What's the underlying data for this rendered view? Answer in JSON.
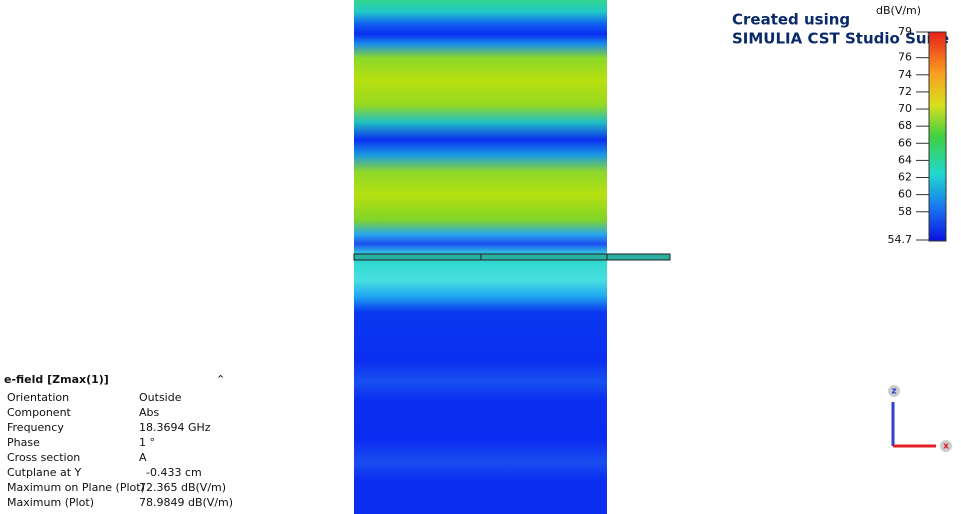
{
  "watermark": {
    "line1": "Created using",
    "line2": "SIMULIA CST Studio Suite"
  },
  "colorbar": {
    "unit": "dB(V/m)",
    "max": 79,
    "min": 54.7,
    "ticks": [
      76,
      74,
      72,
      70,
      68,
      66,
      64,
      62,
      60,
      58
    ]
  },
  "info": {
    "title": "e-field [Zmax(1)]",
    "rows": [
      [
        "Orientation",
        "Outside"
      ],
      [
        "Component",
        "Abs"
      ],
      [
        "Frequency",
        "18.3694 GHz"
      ],
      [
        "Phase",
        "1 °"
      ],
      [
        "Cross section",
        "A"
      ],
      [
        "Cutplane at Y",
        "-0.433 cm"
      ],
      [
        "Maximum on Plane (Plot)",
        "72.365 dB(V/m)"
      ],
      [
        "Maximum (Plot)",
        "78.9849 dB(V/m)"
      ]
    ]
  },
  "axes": {
    "z": "z",
    "x": "x"
  }
}
